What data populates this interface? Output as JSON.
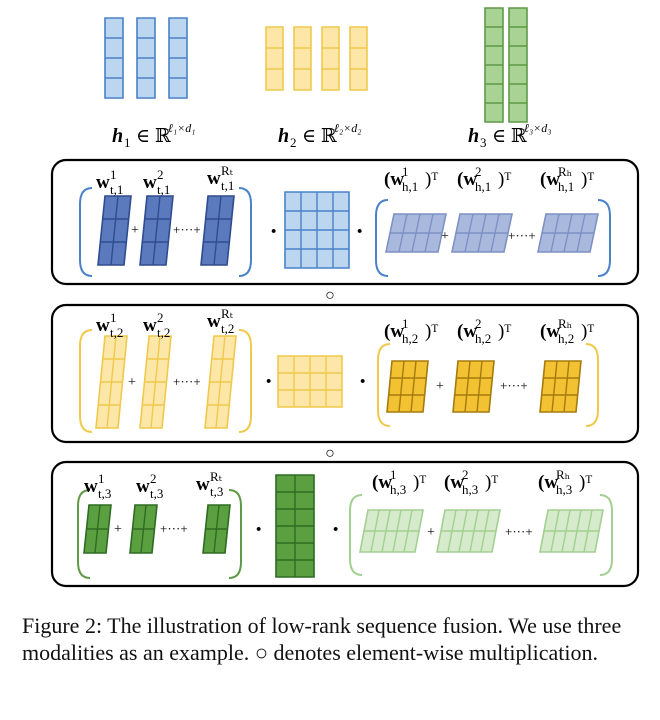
{
  "colors": {
    "blue_light": "#bcd6f0",
    "blue_stroke": "#4a82c8",
    "blue_dark": "#5b79bd",
    "blue_dark_stroke": "#2f4c8f",
    "blue_pale": "#a9b9dd",
    "blue_pale_stroke": "#7e90c4",
    "yellow_light": "#fde7a8",
    "yellow_stroke": "#f0c94c",
    "yellow_dark": "#f2c233",
    "yellow_dark_stroke": "#a67b0e",
    "green_light": "#a9d395",
    "green_stroke": "#5e9a47",
    "green_dark": "#5aa040",
    "green_dark_stroke": "#2f6b22",
    "green_pale": "#d5ebcc",
    "green_pale_stroke": "#a3cf92"
  },
  "inputs": [
    {
      "name": "h",
      "sub": "1",
      "set": "∈ ℝ",
      "sup": "ℓ₁×d₁"
    },
    {
      "name": "h",
      "sub": "2",
      "set": "∈ ℝ",
      "sup": "ℓ₂×d₂"
    },
    {
      "name": "h",
      "sub": "3",
      "set": "∈ ℝ",
      "sup": "ℓ₃×d₃"
    }
  ],
  "rows": [
    {
      "t_labels": [
        {
          "name": "w",
          "sup": "1",
          "sub": "t,1"
        },
        {
          "name": "w",
          "sup": "2",
          "sub": "t,1"
        },
        {
          "name": "w",
          "sup": "Rₜ",
          "sub": "t,1"
        }
      ],
      "h_labels": [
        {
          "name": "(w",
          "sup": "1",
          "sub": "h,1",
          "post": ")ᵀ"
        },
        {
          "name": "(w",
          "sup": "2",
          "sub": "h,1",
          "post": ")ᵀ"
        },
        {
          "name": "(w",
          "sup": "Rₕ",
          "sub": "h,1",
          "post": ")ᵀ"
        }
      ]
    },
    {
      "t_labels": [
        {
          "name": "w",
          "sup": "1",
          "sub": "t,2"
        },
        {
          "name": "w",
          "sup": "2",
          "sub": "t,2"
        },
        {
          "name": "w",
          "sup": "Rₜ",
          "sub": "t,2"
        }
      ],
      "h_labels": [
        {
          "name": "(w",
          "sup": "1",
          "sub": "h,2",
          "post": ")ᵀ"
        },
        {
          "name": "(w",
          "sup": "2",
          "sub": "h,2",
          "post": ")ᵀ"
        },
        {
          "name": "(w",
          "sup": "Rₕ",
          "sub": "h,2",
          "post": ")ᵀ"
        }
      ]
    },
    {
      "t_labels": [
        {
          "name": "w",
          "sup": "1",
          "sub": "t,3"
        },
        {
          "name": "w",
          "sup": "2",
          "sub": "t,3"
        },
        {
          "name": "w",
          "sup": "Rₜ",
          "sub": "t,3"
        }
      ],
      "h_labels": [
        {
          "name": "(w",
          "sup": "1",
          "sub": "h,3",
          "post": ")ᵀ"
        },
        {
          "name": "(w",
          "sup": "2",
          "sub": "h,3",
          "post": ")ᵀ"
        },
        {
          "name": "(w",
          "sup": "Rₕ",
          "sub": "h,3",
          "post": ")ᵀ"
        }
      ]
    }
  ],
  "symbols": {
    "plus": "+",
    "dots": "+···+",
    "dot": "·",
    "circ": "○"
  },
  "caption": "Figure 2: The illustration of low-rank sequence fusion. We use three modalities as an example. ○ denotes element-wise multiplication."
}
